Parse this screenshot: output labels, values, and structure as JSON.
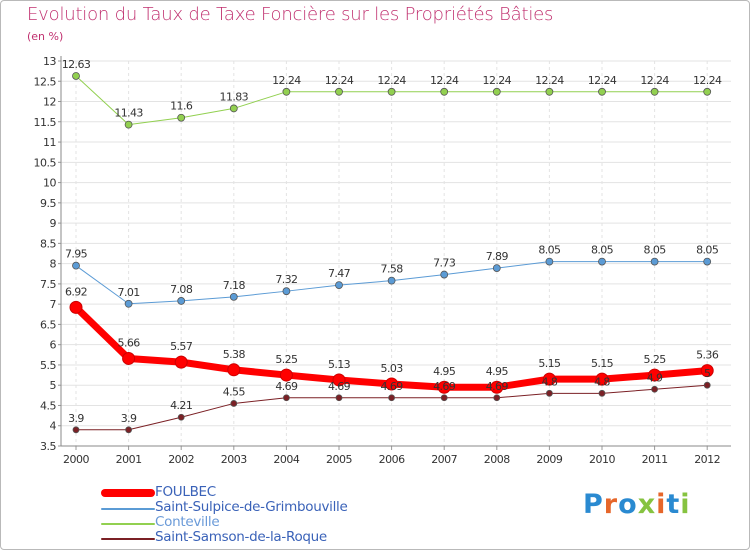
{
  "title": "Evolution du Taux de Taxe Foncière sur les Propriétés Bâties",
  "subtitle": "(en %)",
  "logo": {
    "text": "Proxiti",
    "letters": [
      "P",
      "r",
      "o",
      "x",
      "i",
      "t",
      "i"
    ],
    "colors": [
      "#2a8ad1",
      "#e6662a",
      "#2a8ad1",
      "#86c340",
      "#e6662a",
      "#2a8ad1",
      "#86c340"
    ]
  },
  "chart_data": {
    "type": "line",
    "title": "Evolution du Taux de Taxe Foncière sur les Propriétés Bâties",
    "ylabel": "(en %)",
    "xlabel": "",
    "x": [
      "2000",
      "2001",
      "2002",
      "2003",
      "2004",
      "2005",
      "2006",
      "2007",
      "2008",
      "2009",
      "2010",
      "2011",
      "2012"
    ],
    "ylim": [
      3.5,
      13
    ],
    "yticks": [
      "3.5",
      "4",
      "4.5",
      "5",
      "5.5",
      "6",
      "6.5",
      "7",
      "7.5",
      "8",
      "8.5",
      "9",
      "9.5",
      "10",
      "10.5",
      "11",
      "11.5",
      "12",
      "12.5",
      "13"
    ],
    "grid": "horizontal",
    "series": [
      {
        "name": "FOULBEC",
        "color": "#ff0000",
        "values": [
          6.92,
          5.66,
          5.57,
          5.38,
          5.25,
          5.13,
          5.03,
          4.95,
          4.95,
          5.15,
          5.15,
          5.25,
          5.36
        ],
        "labels": [
          "6.92",
          "5.66",
          "5.57",
          "5.38",
          "5.25",
          "5.13",
          "5.03",
          "4.95",
          "4.95",
          "5.15",
          "5.15",
          "5.25",
          "5.36"
        ]
      },
      {
        "name": "Saint-Sulpice-de-Grimbouville",
        "color": "#5b9bd5",
        "values": [
          7.95,
          7.01,
          7.08,
          7.18,
          7.32,
          7.47,
          7.58,
          7.73,
          7.89,
          8.05,
          8.05,
          8.05,
          8.05
        ],
        "labels": [
          "7.95",
          "7.01",
          "7.08",
          "7.18",
          "7.32",
          "7.47",
          "7.58",
          "7.73",
          "7.89",
          "8.05",
          "8.05",
          "8.05",
          "8.05"
        ]
      },
      {
        "name": "Conteville",
        "color": "#92d050",
        "values": [
          12.63,
          11.43,
          11.6,
          11.83,
          12.24,
          12.24,
          12.24,
          12.24,
          12.24,
          12.24,
          12.24,
          12.24,
          12.24
        ],
        "labels": [
          "12.63",
          "11.43",
          "11.6",
          "11.83",
          "12.24",
          "12.24",
          "12.24",
          "12.24",
          "12.24",
          "12.24",
          "12.24",
          "12.24",
          "12.24"
        ]
      },
      {
        "name": "Saint-Samson-de-la-Roque",
        "color": "#7b2025",
        "values": [
          3.9,
          3.9,
          4.21,
          4.55,
          4.69,
          4.69,
          4.69,
          4.69,
          4.69,
          4.8,
          4.8,
          4.9,
          5.0
        ],
        "labels": [
          "3.9",
          "3.9",
          "4.21",
          "4.55",
          "4.69",
          "4.69",
          "4.69",
          "4.69",
          "4.69",
          "4.8",
          "4.8",
          "4.9",
          "5"
        ]
      }
    ],
    "legend_position": "bottom-left"
  }
}
